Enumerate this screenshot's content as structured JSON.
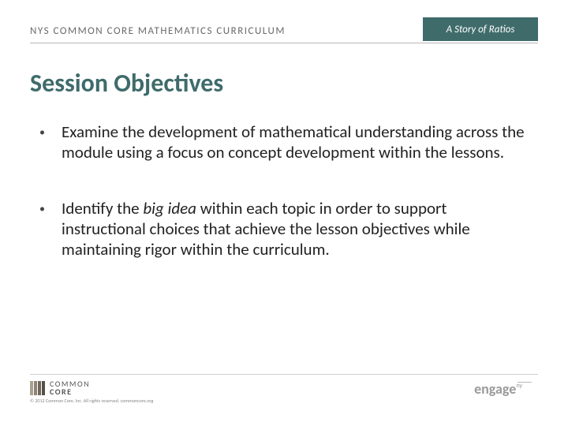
{
  "header": {
    "left_text": "NYS COMMON CORE MATHEMATICS CURRICULUM",
    "right_text": "A Story of Ratios",
    "right_bg": "#3f6b6b",
    "rule_color": "#b8b8b8"
  },
  "title": {
    "text": "Session Objectives",
    "color": "#3f6b6b",
    "fontsize": 32
  },
  "bullets": [
    {
      "text": "Examine the development of mathematical understanding across the module using a focus on concept development within the lessons."
    },
    {
      "pre": "Identify the ",
      "em": "big idea",
      "post": " within each topic in order to support instructional choices that achieve the lesson objectives while maintaining rigor within the curriculum."
    }
  ],
  "footer": {
    "logo_bars": [
      "#a9a094",
      "#8d8477",
      "#6f675b",
      "#555047"
    ],
    "logo_line1": "COMMON",
    "logo_line2": "CORE",
    "copyright": "© 2012 Common Core, Inc. All rights reserved. commoncore.org",
    "right_brand_bold": "engage",
    "right_brand_tail": "ny"
  },
  "colors": {
    "body_bg": "#ffffff",
    "body_text": "#222222",
    "header_text": "#6a6a6a"
  }
}
